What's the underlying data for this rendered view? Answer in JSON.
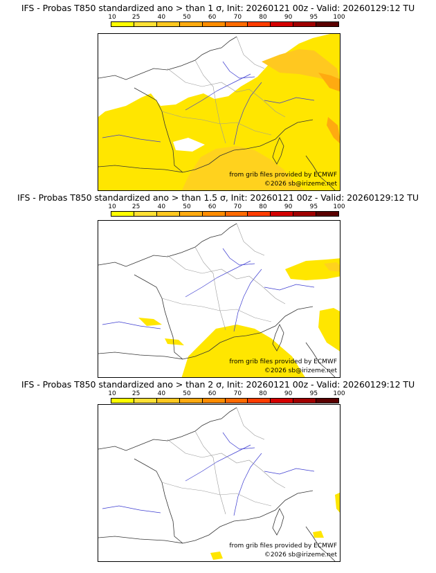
{
  "colorbar": {
    "ticks": [
      "10",
      "25",
      "40",
      "50",
      "60",
      "70",
      "80",
      "90",
      "95",
      "100"
    ],
    "colors": [
      "#ffff00",
      "#ffe135",
      "#ffc820",
      "#ffaa10",
      "#ff8c00",
      "#ff6a00",
      "#ff3c00",
      "#d40000",
      "#a00000",
      "#5a0000"
    ]
  },
  "panels": [
    {
      "title": "IFS - Probas T850  standardized ano > than 1 σ, Init: 20260121 00z - Valid: 20260129:12 TU",
      "credit_source": "from grib files provided by ECMWF",
      "credit_copyright": "©2026 sb@irizeme.net",
      "anomaly_threshold_sigma": 1
    },
    {
      "title": "IFS - Probas T850  standardized ano > than 1.5 σ, Init: 20260121 00z - Valid: 20260129:12 TU",
      "credit_source": "from grib files provided by ECMWF",
      "credit_copyright": "©2026 sb@irizeme.net",
      "anomaly_threshold_sigma": 1.5
    },
    {
      "title": "IFS - Probas T850  standardized ano > than 2 σ, Init: 20260121 00z - Valid: 20260129:12 TU",
      "credit_source": "from grib files provided by ECMWF",
      "credit_copyright": "©2026 sb@irizeme.net",
      "anomaly_threshold_sigma": 2
    }
  ]
}
